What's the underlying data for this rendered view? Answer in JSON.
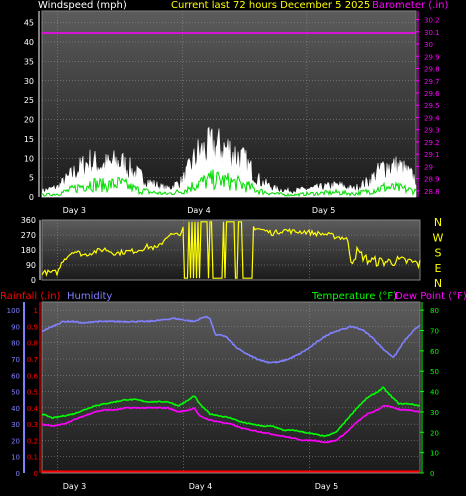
{
  "header": {
    "left": "Windspeed (mph)",
    "center": "Current last 72 hours December 5 2025",
    "right": "Barometer (.in)"
  },
  "colors": {
    "plot_bg_top": "#5a5a5a",
    "plot_bg_bottom": "#1c1c1c",
    "grid": "#9a9a9a",
    "wind_avg": "#ffffff",
    "wind_gust": "#00dd00",
    "barometer": "#ff00ff",
    "direction": "#ffff00",
    "humidity": "#8080ff",
    "temperature": "#00ff00",
    "dew_point": "#ff00ff",
    "rainfall": "#ff0000",
    "header_left": "#ffffff",
    "header_center": "#ffff00",
    "header_right": "#ff00ff"
  },
  "chart_data": [
    {
      "type": "line",
      "id": "wind",
      "x_ticks": [
        "Day 3",
        "Day 4",
        "Day 5"
      ],
      "y_left_ticks": [
        "45",
        "40",
        "35",
        "30",
        "25",
        "20",
        "15",
        "10",
        "5",
        "0"
      ],
      "y_right_ticks": [
        "30.2",
        "30.1",
        "30",
        "29.9",
        "29.8",
        "29.7",
        "29.6",
        "29.5",
        "29.4",
        "29.3",
        "29.2",
        "29.1",
        "29",
        "28.9",
        "28.8"
      ],
      "ylim_left": [
        0,
        48
      ],
      "ylim_right": [
        28.75,
        30.27
      ],
      "xlim_hours": [
        0,
        72
      ],
      "day_tick_hours": [
        3,
        27,
        51
      ],
      "barometer_inhg": 30.09,
      "series_windspeed_points": [
        [
          0,
          1.5
        ],
        [
          3,
          2.5
        ],
        [
          6,
          6
        ],
        [
          9,
          9
        ],
        [
          12,
          8
        ],
        [
          15,
          9
        ],
        [
          18,
          6
        ],
        [
          21,
          3.5
        ],
        [
          24,
          2
        ],
        [
          27,
          4
        ],
        [
          30,
          11
        ],
        [
          33,
          13
        ],
        [
          36,
          12
        ],
        [
          39,
          9
        ],
        [
          42,
          4
        ],
        [
          45,
          2
        ],
        [
          48,
          1.5
        ],
        [
          51,
          2
        ],
        [
          54,
          2.5
        ],
        [
          57,
          3
        ],
        [
          60,
          2
        ],
        [
          63,
          4
        ],
        [
          66,
          8
        ],
        [
          69,
          7.5
        ],
        [
          72,
          4.5
        ]
      ],
      "series_gust_points": [
        [
          0,
          0.5
        ],
        [
          3,
          0.8
        ],
        [
          6,
          2
        ],
        [
          9,
          3.5
        ],
        [
          12,
          3
        ],
        [
          15,
          3.5
        ],
        [
          18,
          2
        ],
        [
          21,
          1.2
        ],
        [
          24,
          0.8
        ],
        [
          27,
          1.5
        ],
        [
          30,
          3.5
        ],
        [
          33,
          4.5
        ],
        [
          36,
          4
        ],
        [
          39,
          3
        ],
        [
          42,
          1.5
        ],
        [
          45,
          0.8
        ],
        [
          48,
          0.5
        ],
        [
          51,
          0.8
        ],
        [
          54,
          1
        ],
        [
          57,
          1.2
        ],
        [
          60,
          0.8
        ],
        [
          63,
          1.5
        ],
        [
          66,
          2.5
        ],
        [
          69,
          2.2
        ],
        [
          72,
          1.5
        ]
      ]
    },
    {
      "type": "line",
      "id": "direction",
      "y_ticks": [
        "360",
        "270",
        "180",
        "90",
        "0"
      ],
      "ylim": [
        0,
        360
      ],
      "xlim_hours": [
        0,
        72
      ],
      "compass": [
        "N",
        "W",
        "S",
        "E",
        "N"
      ],
      "series_direction_points": [
        [
          0,
          45
        ],
        [
          3,
          45
        ],
        [
          4,
          120
        ],
        [
          6,
          175
        ],
        [
          8,
          150
        ],
        [
          10,
          170
        ],
        [
          12,
          185
        ],
        [
          14,
          160
        ],
        [
          16,
          170
        ],
        [
          18,
          175
        ],
        [
          20,
          200
        ],
        [
          22,
          190
        ],
        [
          24,
          270
        ],
        [
          26,
          270
        ],
        [
          27,
          310
        ],
        [
          28,
          330
        ],
        [
          29,
          330
        ],
        [
          30,
          330
        ],
        [
          31,
          330
        ],
        [
          32,
          330
        ],
        [
          33,
          330
        ],
        [
          34,
          330
        ],
        [
          35,
          330
        ],
        [
          36,
          330
        ],
        [
          37,
          330
        ],
        [
          38,
          330
        ],
        [
          39,
          320
        ],
        [
          40,
          320
        ],
        [
          42,
          300
        ],
        [
          44,
          280
        ],
        [
          46,
          300
        ],
        [
          48,
          290
        ],
        [
          50,
          290
        ],
        [
          52,
          280
        ],
        [
          54,
          275
        ],
        [
          56,
          260
        ],
        [
          58,
          250
        ],
        [
          59,
          110
        ],
        [
          60,
          170
        ],
        [
          62,
          120
        ],
        [
          64,
          110
        ],
        [
          66,
          110
        ],
        [
          68,
          115
        ],
        [
          70,
          110
        ],
        [
          72,
          95
        ]
      ],
      "direction_spread_deg": 170,
      "spread_range_hours": [
        27,
        40
      ]
    },
    {
      "type": "line",
      "id": "climate",
      "x_ticks": [
        "Day 3",
        "Day 4",
        "Day 5"
      ],
      "day_tick_hours": [
        3,
        27,
        51
      ],
      "xlim_hours": [
        0,
        72
      ],
      "header_left_red": "Rainfall (.in)",
      "header_left_blue": "Humidity",
      "header_right_green": "Temperature (°F)",
      "header_right_magenta": "Dew Point (°F)",
      "y_humidity_ticks": [
        "100",
        "90",
        "80",
        "70",
        "60",
        "50",
        "40",
        "30",
        "20",
        "10",
        "0"
      ],
      "y_rain_ticks": [
        "1",
        "0.9",
        "0.8",
        "0.7",
        "0.6",
        "0.5",
        "0.4",
        "0.3",
        "0.2",
        "0.1",
        "0"
      ],
      "y_temp_ticks": [
        "80",
        "70",
        "60",
        "50",
        "40",
        "30",
        "20",
        "10",
        "0"
      ],
      "ylim_humidity": [
        0,
        105
      ],
      "ylim_temp": [
        0,
        84
      ],
      "series_humidity_points": [
        [
          0,
          87
        ],
        [
          2,
          90
        ],
        [
          4,
          93
        ],
        [
          6,
          93
        ],
        [
          8,
          92
        ],
        [
          10,
          93
        ],
        [
          12,
          93
        ],
        [
          15,
          93
        ],
        [
          18,
          93
        ],
        [
          20,
          93
        ],
        [
          23,
          94
        ],
        [
          25,
          95
        ],
        [
          27,
          94
        ],
        [
          29,
          93
        ],
        [
          31,
          96
        ],
        [
          32,
          95
        ],
        [
          33,
          85
        ],
        [
          35,
          84
        ],
        [
          37,
          77
        ],
        [
          39,
          73
        ],
        [
          41,
          70
        ],
        [
          43,
          68
        ],
        [
          45,
          68
        ],
        [
          47,
          70
        ],
        [
          49,
          73
        ],
        [
          51,
          77
        ],
        [
          53,
          82
        ],
        [
          55,
          86
        ],
        [
          57,
          88
        ],
        [
          59,
          90
        ],
        [
          61,
          88
        ],
        [
          63,
          83
        ],
        [
          65,
          76
        ],
        [
          67,
          71
        ],
        [
          69,
          81
        ],
        [
          71,
          88
        ],
        [
          72,
          91
        ]
      ],
      "series_temperature_points": [
        [
          0,
          29
        ],
        [
          2,
          27
        ],
        [
          4,
          28
        ],
        [
          6,
          29
        ],
        [
          8,
          31
        ],
        [
          10,
          33
        ],
        [
          12,
          34
        ],
        [
          14,
          35
        ],
        [
          16,
          36
        ],
        [
          18,
          36
        ],
        [
          20,
          35
        ],
        [
          22,
          35
        ],
        [
          24,
          35
        ],
        [
          26,
          33
        ],
        [
          28,
          36
        ],
        [
          29,
          38
        ],
        [
          30,
          34
        ],
        [
          32,
          29
        ],
        [
          34,
          28
        ],
        [
          36,
          27
        ],
        [
          38,
          25
        ],
        [
          40,
          24
        ],
        [
          42,
          23
        ],
        [
          44,
          23
        ],
        [
          46,
          21
        ],
        [
          48,
          21
        ],
        [
          50,
          20
        ],
        [
          52,
          19
        ],
        [
          54,
          18
        ],
        [
          56,
          20
        ],
        [
          58,
          26
        ],
        [
          60,
          32
        ],
        [
          62,
          37
        ],
        [
          64,
          40
        ],
        [
          65,
          42
        ],
        [
          66,
          39
        ],
        [
          68,
          34
        ],
        [
          70,
          34
        ],
        [
          72,
          33
        ]
      ],
      "series_dewpoint_points": [
        [
          0,
          24
        ],
        [
          2,
          23
        ],
        [
          4,
          24
        ],
        [
          6,
          26
        ],
        [
          8,
          28
        ],
        [
          10,
          30
        ],
        [
          12,
          31
        ],
        [
          14,
          31
        ],
        [
          16,
          32
        ],
        [
          18,
          32
        ],
        [
          20,
          32
        ],
        [
          22,
          32
        ],
        [
          24,
          32
        ],
        [
          26,
          30
        ],
        [
          28,
          31
        ],
        [
          29,
          32
        ],
        [
          30,
          28
        ],
        [
          32,
          26
        ],
        [
          34,
          25
        ],
        [
          36,
          24
        ],
        [
          38,
          22
        ],
        [
          40,
          21
        ],
        [
          42,
          20
        ],
        [
          44,
          19
        ],
        [
          46,
          18
        ],
        [
          48,
          17
        ],
        [
          50,
          16
        ],
        [
          52,
          16
        ],
        [
          54,
          15
        ],
        [
          56,
          16
        ],
        [
          58,
          20
        ],
        [
          60,
          25
        ],
        [
          62,
          29
        ],
        [
          64,
          31
        ],
        [
          65,
          33
        ],
        [
          66,
          33
        ],
        [
          68,
          31
        ],
        [
          70,
          31
        ],
        [
          72,
          30
        ]
      ],
      "series_rainfall_points": [
        [
          0,
          0
        ],
        [
          72,
          0
        ]
      ]
    }
  ]
}
